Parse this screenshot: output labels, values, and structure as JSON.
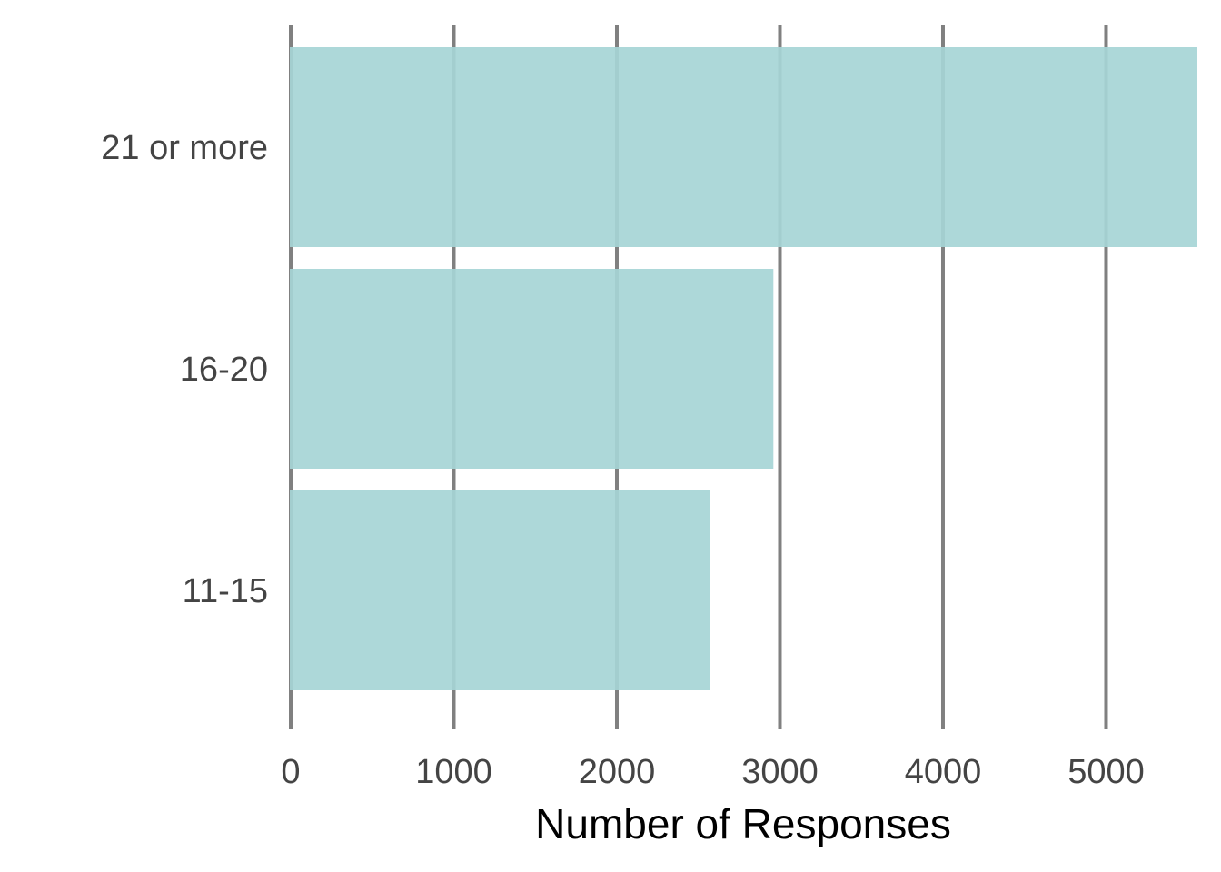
{
  "chart_data": {
    "type": "bar",
    "orientation": "horizontal",
    "categories": [
      "21 or more",
      "16-20",
      "11-15"
    ],
    "values": [
      5560,
      2960,
      2570
    ],
    "xlabel": "Number of Responses",
    "ylabel": "",
    "xlim": [
      0,
      5560
    ],
    "xticks": [
      0,
      1000,
      2000,
      3000,
      4000,
      5000
    ],
    "xtick_labels": [
      "0",
      "1000",
      "2000",
      "3000",
      "4000",
      "5000"
    ],
    "grid": "vertical major gridlines",
    "legend": "none",
    "colors": {
      "bar": "#a6d5d6",
      "grid": "#808080",
      "tick_text": "#444444",
      "title_text": "#000000"
    }
  }
}
